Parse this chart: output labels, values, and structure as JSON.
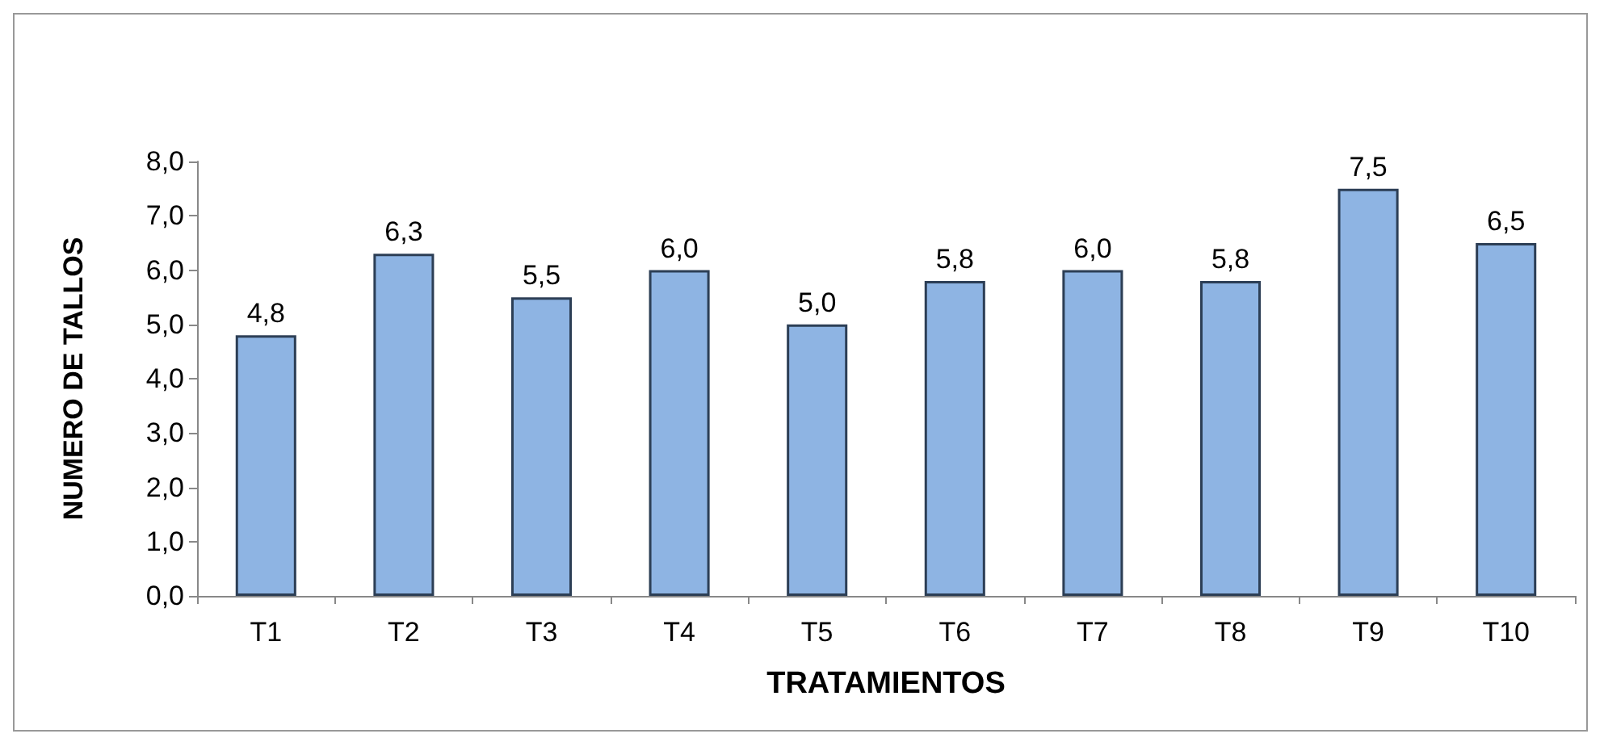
{
  "chart_data": {
    "type": "bar",
    "xlabel": "TRATAMIENTOS",
    "ylabel": "NUMERO DE TALLOS",
    "categories": [
      "T1",
      "T2",
      "T3",
      "T4",
      "T5",
      "T6",
      "T7",
      "T8",
      "T9",
      "T10"
    ],
    "values": [
      4.8,
      6.3,
      5.5,
      6.0,
      5.0,
      5.8,
      6.0,
      5.8,
      7.5,
      6.5
    ],
    "value_labels": [
      "4,8",
      "6,3",
      "5,5",
      "6,0",
      "5,0",
      "5,8",
      "6,0",
      "5,8",
      "7,5",
      "6,5"
    ],
    "color": "#8eb4e3",
    "ylim": [
      0,
      8
    ],
    "yticks": [
      {
        "value": 0,
        "label": "0,0"
      },
      {
        "value": 1,
        "label": "1,0"
      },
      {
        "value": 2,
        "label": "2,0"
      },
      {
        "value": 3,
        "label": "3,0"
      },
      {
        "value": 4,
        "label": "4,0"
      },
      {
        "value": 5,
        "label": "5,0"
      },
      {
        "value": 6,
        "label": "6,0"
      },
      {
        "value": 7,
        "label": "7,0"
      },
      {
        "value": 8,
        "label": "8,0"
      }
    ]
  }
}
